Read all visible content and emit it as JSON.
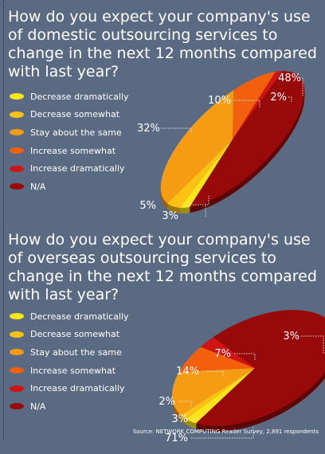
{
  "colors": {
    "background": "#5a6a82",
    "leader": "#dfe3ea"
  },
  "chart_data": [
    {
      "type": "pie",
      "title": "How do you expect your company's use of domestic outsourcing services to change in the next 12 months compared with last year?",
      "categories": [
        "Decrease dramatically",
        "Decrease somewhat",
        "Stay about the same",
        "Increase somewhat",
        "Increase dramatically",
        "N/A"
      ],
      "values": [
        3,
        5,
        32,
        10,
        2,
        48
      ],
      "data_labels": [
        "3%",
        "5%",
        "32%",
        "10%",
        "2%",
        "48%"
      ],
      "colors": [
        "#f8e61a",
        "#fbc114",
        "#f69c13",
        "#f2600d",
        "#d01414",
        "#980a0a"
      ],
      "legend": "left"
    },
    {
      "type": "pie",
      "title": "How do you expect your company's use of overseas outsourcing services to change in the next 12 months compared with last year?",
      "categories": [
        "Decrease dramatically",
        "Decrease somewhat",
        "Stay about the same",
        "Increase somewhat",
        "Increase dramatically",
        "N/A"
      ],
      "values": [
        3,
        2,
        14,
        7,
        3,
        71
      ],
      "data_labels": [
        "3%",
        "2%",
        "14%",
        "7%",
        "3%",
        "71%"
      ],
      "colors": [
        "#f8e61a",
        "#fbc114",
        "#f69c13",
        "#f2600d",
        "#d01414",
        "#980a0a"
      ],
      "legend": "left"
    }
  ],
  "source": "Source: NETWORK COMPUTING Reader Survey, 2,891 respondents"
}
